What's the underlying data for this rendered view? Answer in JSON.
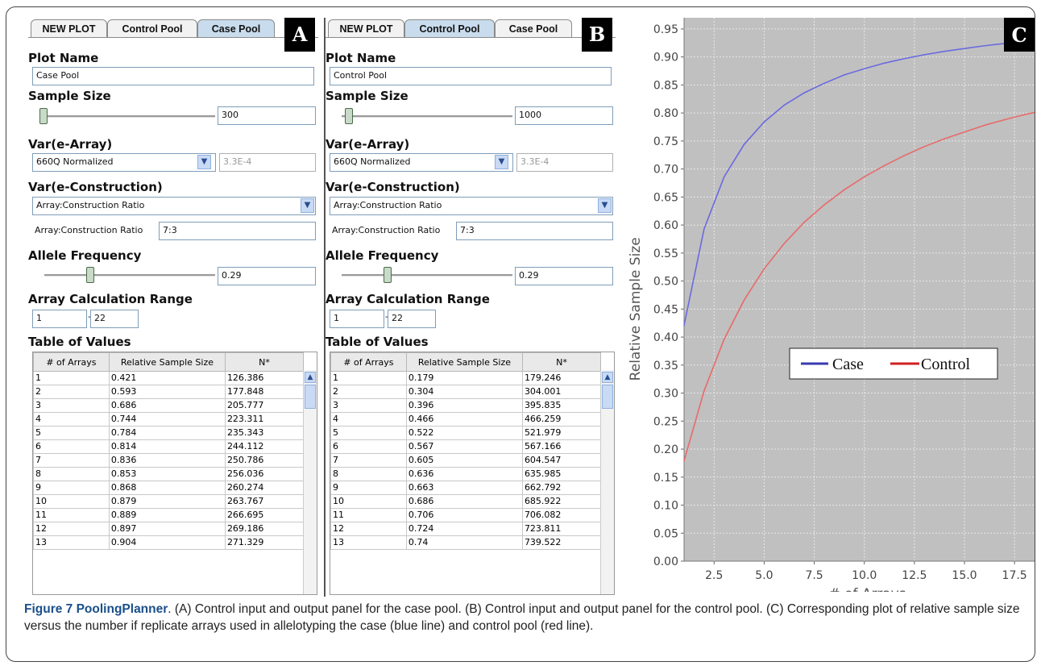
{
  "panels": [
    {
      "id": "A",
      "tabs": [
        "NEW PLOT",
        "Control Pool",
        "Case Pool"
      ],
      "active_tab": 2,
      "badge": "A",
      "plot_name_label": "Plot Name",
      "plot_name_value": "Case Pool",
      "sample_size_label": "Sample Size",
      "sample_size_value": "300",
      "sample_size_slider_fraction": 0.0,
      "var_array_label": "Var(e-Array)",
      "var_array_select": "660Q Normalized",
      "var_array_value": "3.3E-4",
      "var_construction_label": "Var(e-Construction)",
      "var_construction_select": "Array:Construction Ratio",
      "ratio_label": "Array:Construction Ratio",
      "ratio_value": "7:3",
      "allele_label": "Allele Frequency",
      "allele_value": "0.29",
      "allele_slider_fraction": 0.29,
      "range_label": "Array Calculation Range",
      "range_from": "1",
      "range_to": "22",
      "table_label": "Table of Values",
      "table_headers": [
        "# of Arrays",
        "Relative Sample Size",
        "N*"
      ],
      "table_rows": [
        [
          "1",
          "0.421",
          "126.386"
        ],
        [
          "2",
          "0.593",
          "177.848"
        ],
        [
          "3",
          "0.686",
          "205.777"
        ],
        [
          "4",
          "0.744",
          "223.311"
        ],
        [
          "5",
          "0.784",
          "235.343"
        ],
        [
          "6",
          "0.814",
          "244.112"
        ],
        [
          "7",
          "0.836",
          "250.786"
        ],
        [
          "8",
          "0.853",
          "256.036"
        ],
        [
          "9",
          "0.868",
          "260.274"
        ],
        [
          "10",
          "0.879",
          "263.767"
        ],
        [
          "11",
          "0.889",
          "266.695"
        ],
        [
          "12",
          "0.897",
          "269.186"
        ],
        [
          "13",
          "0.904",
          "271.329"
        ]
      ]
    },
    {
      "id": "B",
      "tabs": [
        "NEW PLOT",
        "Control Pool",
        "Case Pool"
      ],
      "active_tab": 1,
      "badge": "B",
      "plot_name_label": "Plot Name",
      "plot_name_value": "Control Pool",
      "sample_size_label": "Sample Size",
      "sample_size_value": "1000",
      "sample_size_slider_fraction": 0.05,
      "var_array_label": "Var(e-Array)",
      "var_array_select": "660Q Normalized",
      "var_array_value": "3.3E-4",
      "var_construction_label": "Var(e-Construction)",
      "var_construction_select": "Array:Construction Ratio",
      "ratio_label": "Array:Construction Ratio",
      "ratio_value": "7:3",
      "allele_label": "Allele Frequency",
      "allele_value": "0.29",
      "allele_slider_fraction": 0.29,
      "range_label": "Array Calculation Range",
      "range_from": "1",
      "range_to": "22",
      "table_label": "Table of Values",
      "table_headers": [
        "# of Arrays",
        "Relative Sample Size",
        "N*"
      ],
      "table_rows": [
        [
          "1",
          "0.179",
          "179.246"
        ],
        [
          "2",
          "0.304",
          "304.001"
        ],
        [
          "3",
          "0.396",
          "395.835"
        ],
        [
          "4",
          "0.466",
          "466.259"
        ],
        [
          "5",
          "0.522",
          "521.979"
        ],
        [
          "6",
          "0.567",
          "567.166"
        ],
        [
          "7",
          "0.605",
          "604.547"
        ],
        [
          "8",
          "0.636",
          "635.985"
        ],
        [
          "9",
          "0.663",
          "662.792"
        ],
        [
          "10",
          "0.686",
          "685.922"
        ],
        [
          "11",
          "0.706",
          "706.082"
        ],
        [
          "12",
          "0.724",
          "723.811"
        ],
        [
          "13",
          "0.74",
          "739.522"
        ]
      ]
    }
  ],
  "chart_badge": "C",
  "chart_data": {
    "type": "line",
    "title": "",
    "xlabel": "# of Arrays",
    "ylabel": "Relative Sample Size",
    "xlim": [
      1,
      18.5
    ],
    "ylim": [
      0,
      0.97
    ],
    "xticks": [
      "2.5",
      "5.0",
      "7.5",
      "10.0",
      "12.5",
      "15.0",
      "17.5"
    ],
    "xtick_values": [
      2.5,
      5.0,
      7.5,
      10.0,
      12.5,
      15.0,
      17.5
    ],
    "yticks": [
      "0.00",
      "0.05",
      "0.10",
      "0.15",
      "0.20",
      "0.25",
      "0.30",
      "0.35",
      "0.40",
      "0.45",
      "0.50",
      "0.55",
      "0.60",
      "0.65",
      "0.70",
      "0.75",
      "0.80",
      "0.85",
      "0.90",
      "0.95"
    ],
    "ytick_values": [
      0,
      0.05,
      0.1,
      0.15,
      0.2,
      0.25,
      0.3,
      0.35,
      0.4,
      0.45,
      0.5,
      0.55,
      0.6,
      0.65,
      0.7,
      0.75,
      0.8,
      0.85,
      0.9,
      0.95
    ],
    "grid": true,
    "background": "#c0c0c0",
    "legend_placement": "center-right",
    "x": [
      1,
      2,
      3,
      4,
      5,
      6,
      7,
      8,
      9,
      10,
      11,
      12,
      13,
      14,
      15,
      16,
      17,
      18,
      19
    ],
    "series": [
      {
        "name": "Case",
        "color": "#6a6ae0",
        "values": [
          0.421,
          0.593,
          0.686,
          0.744,
          0.784,
          0.814,
          0.836,
          0.853,
          0.868,
          0.879,
          0.889,
          0.897,
          0.904,
          0.91,
          0.915,
          0.92,
          0.924,
          0.928,
          0.931
        ]
      },
      {
        "name": "Control",
        "color": "#e86a6a",
        "values": [
          0.179,
          0.304,
          0.396,
          0.466,
          0.522,
          0.567,
          0.605,
          0.636,
          0.663,
          0.686,
          0.706,
          0.724,
          0.74,
          0.754,
          0.766,
          0.778,
          0.788,
          0.797,
          0.805
        ]
      }
    ]
  },
  "caption": {
    "bold": "Figure 7 PoolingPlanner",
    "text": ". (A) Control input and output panel for the case pool. (B) Control input and output panel for the control pool. (C) Corresponding plot of relative sample size versus the number if replicate arrays used in allelotyping the case (blue line) and control pool (red line)."
  }
}
